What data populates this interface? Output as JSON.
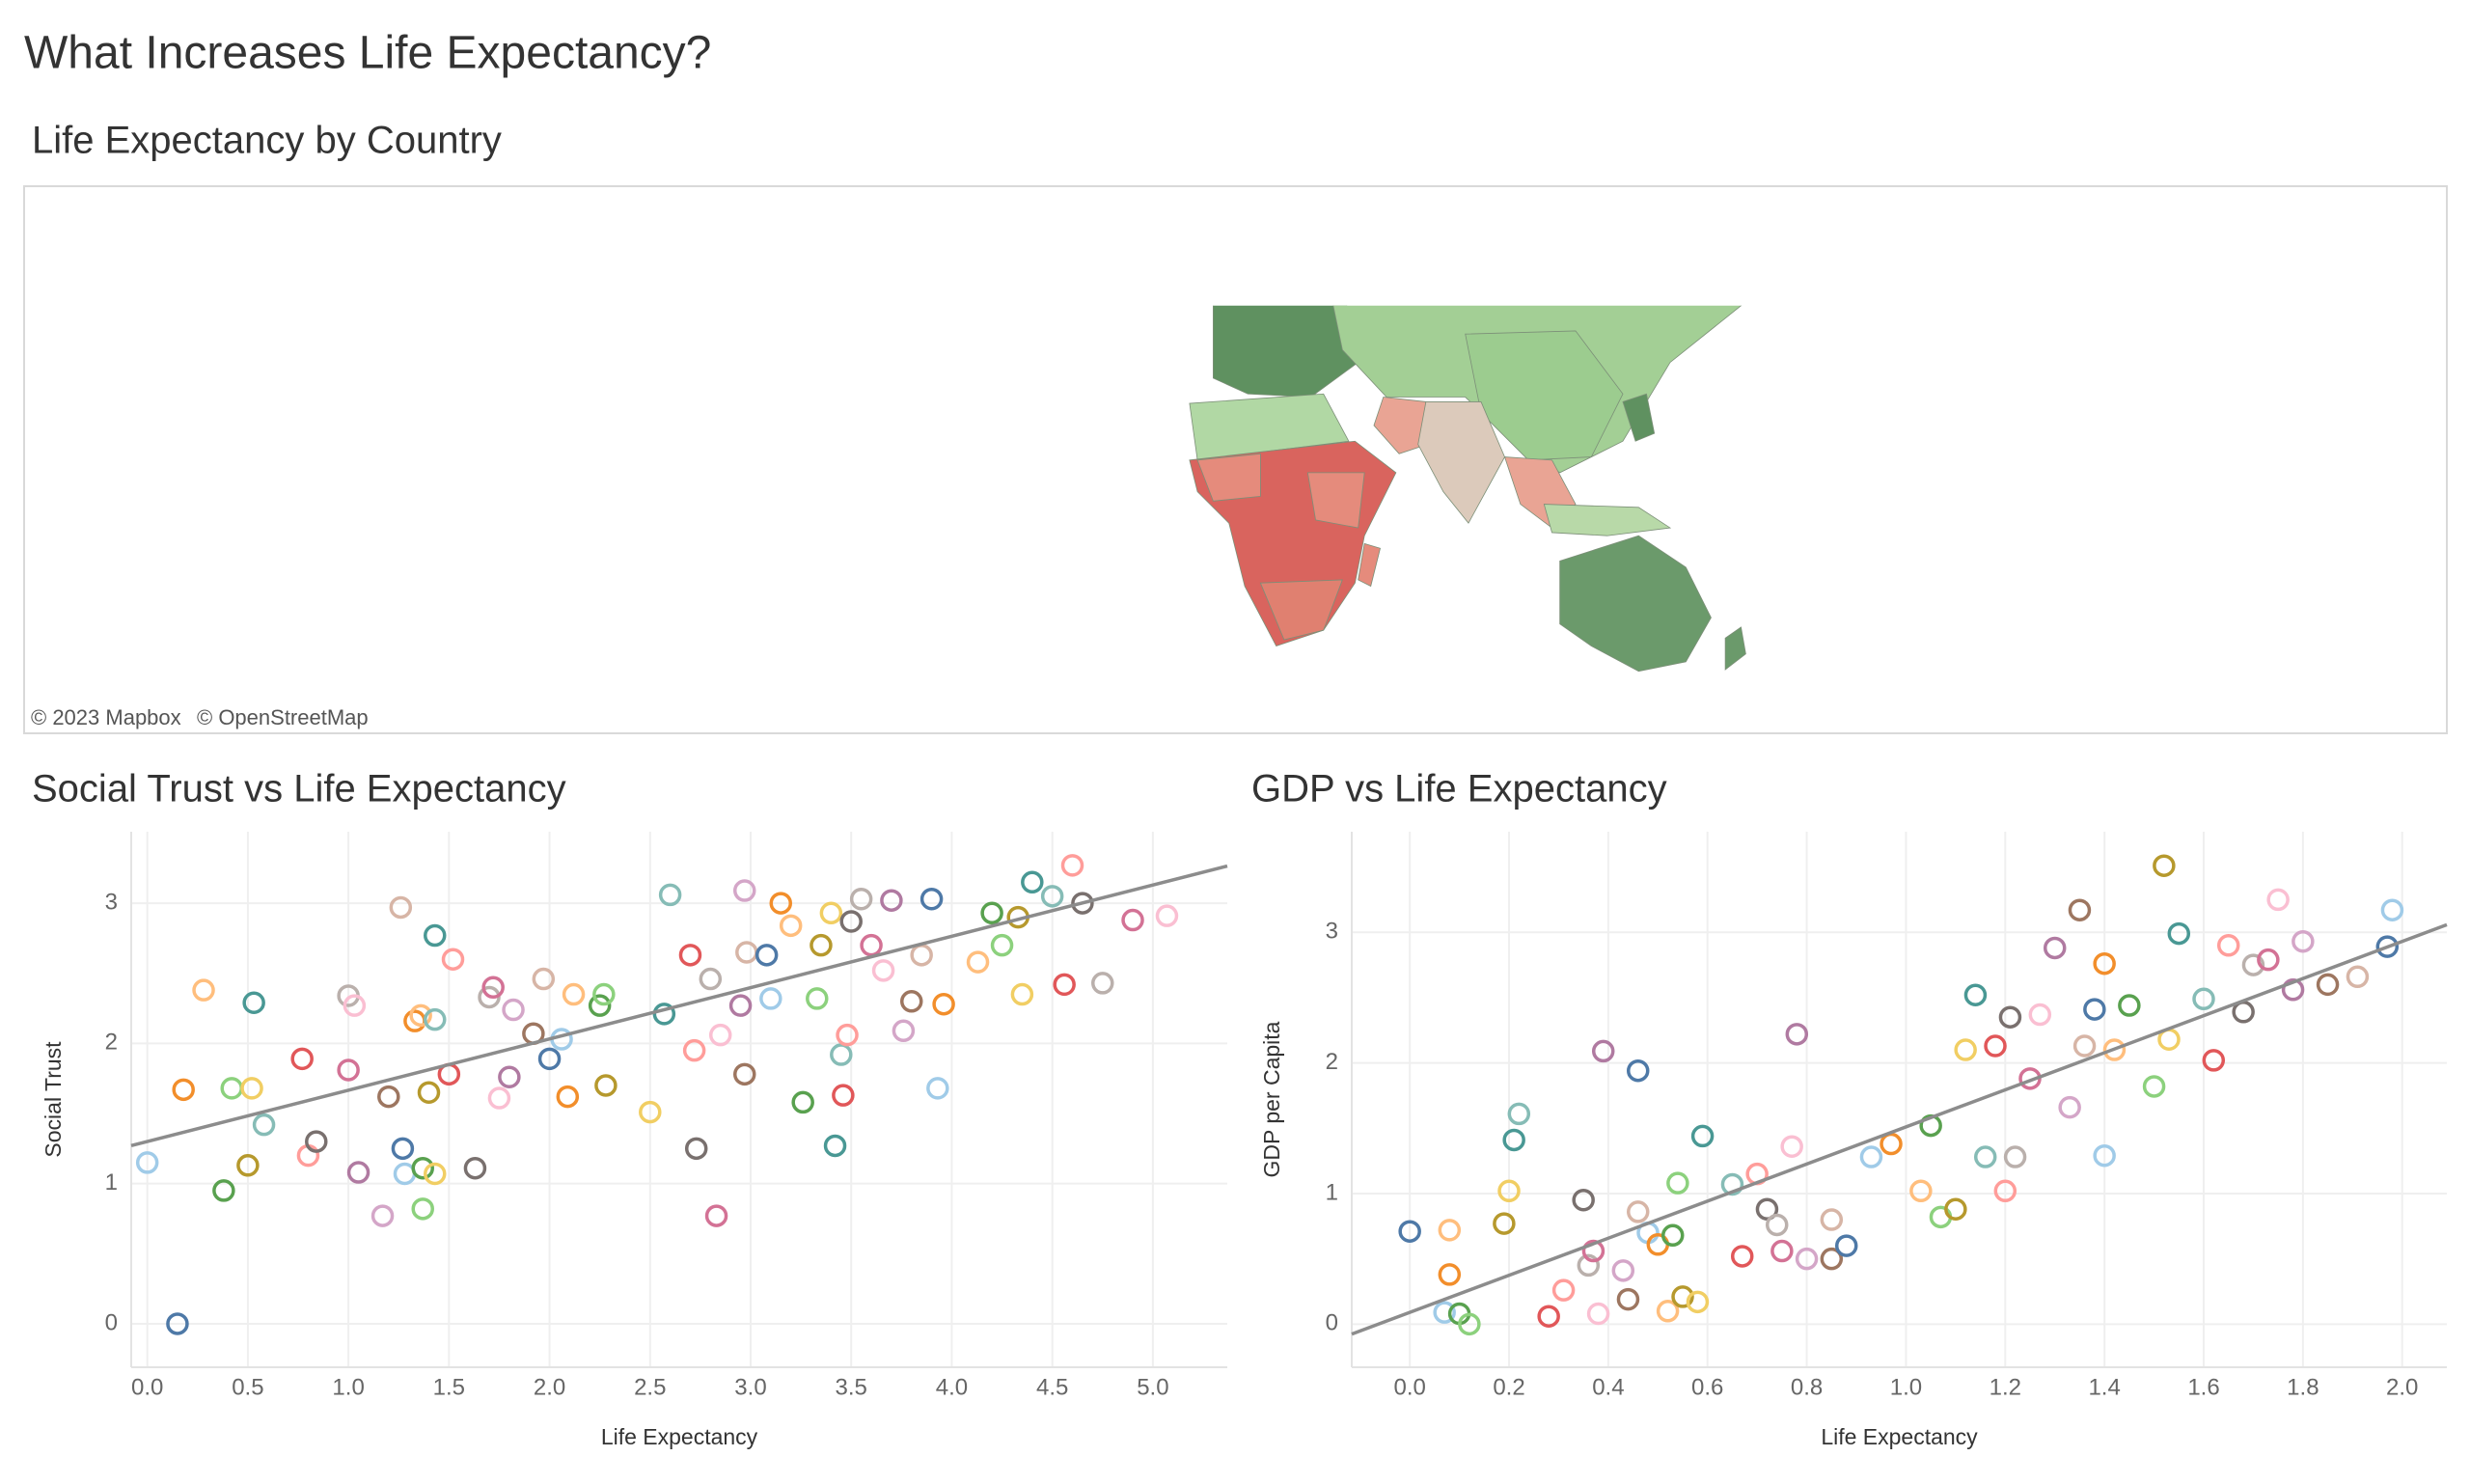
{
  "title": "What Increases Life Expectancy?",
  "chart_data": [
    {
      "type": "map",
      "title": "Life Expectancy by Country",
      "attribution": [
        "© 2023 Mapbox",
        "© OpenStreetMap"
      ]
    },
    {
      "type": "scatter",
      "title": "Social Trust vs Life Expectancy",
      "x_label": "Life Expectancy",
      "y_label": "Social Trust",
      "x": [
        0.15,
        0.0,
        0.18,
        0.28,
        0.38,
        0.42,
        0.5,
        0.52,
        0.53,
        0.58,
        0.77,
        0.8,
        0.84,
        1.0,
        1.0,
        1.03,
        1.05,
        1.17,
        1.2,
        1.26,
        1.27,
        1.28,
        1.33,
        1.36,
        1.37,
        1.37,
        1.4,
        1.43,
        1.43,
        1.43,
        1.5,
        1.52,
        1.63,
        1.7,
        1.72,
        1.75,
        1.8,
        1.82,
        1.92,
        1.97,
        2.0,
        2.06,
        2.09,
        2.12,
        2.25,
        2.27,
        2.28,
        2.5,
        2.57,
        2.6,
        2.7,
        2.72,
        2.73,
        2.8,
        2.83,
        2.85,
        2.95,
        2.97,
        2.97,
        2.98,
        3.08,
        3.1,
        3.15,
        3.2,
        3.26,
        3.33,
        3.35,
        3.4,
        3.42,
        3.45,
        3.46,
        3.48,
        3.5,
        3.55,
        3.6,
        3.66,
        3.7,
        3.76,
        3.8,
        3.85,
        3.9,
        3.93,
        3.96,
        4.13,
        4.2,
        4.25,
        4.33,
        4.35,
        4.4,
        4.5,
        4.56,
        4.6,
        4.65,
        4.75,
        4.9,
        5.07
      ],
      "y": [
        0.0,
        1.15,
        1.67,
        2.38,
        0.95,
        1.68,
        1.13,
        1.68,
        2.29,
        1.42,
        1.89,
        1.2,
        1.3,
        2.34,
        1.81,
        2.27,
        1.08,
        0.77,
        1.62,
        2.97,
        1.25,
        1.07,
        2.16,
        2.2,
        1.11,
        0.82,
        1.65,
        1.07,
        2.77,
        2.17,
        1.78,
        2.6,
        1.11,
        2.33,
        2.4,
        1.61,
        1.76,
        2.24,
        2.07,
        2.46,
        1.89,
        2.03,
        1.62,
        2.35,
        2.27,
        2.35,
        1.7,
        1.51,
        2.21,
        3.06,
        2.63,
        1.95,
        1.25,
        2.46,
        0.77,
        2.06,
        2.27,
        3.09,
        1.78,
        2.65,
        2.63,
        2.32,
        3.0,
        2.84,
        1.58,
        2.32,
        2.7,
        2.93,
        1.27,
        1.92,
        1.63,
        2.06,
        2.87,
        3.03,
        2.7,
        2.52,
        3.02,
        2.09,
        2.3,
        2.63,
        3.03,
        1.68,
        2.28,
        2.58,
        2.93,
        2.7,
        2.9,
        2.35,
        3.15,
        3.05,
        2.42,
        3.27,
        3.0,
        2.43,
        2.88,
        2.91
      ],
      "xlim": [
        -0.08,
        5.37
      ],
      "ylim": [
        -0.31,
        3.51
      ],
      "xticks": [
        {
          "value": 0,
          "label": "0.0"
        },
        0.5,
        {
          "value": 1,
          "label": "1.0"
        },
        1.5,
        {
          "value": 2,
          "label": "2.0"
        },
        2.5,
        {
          "value": 3,
          "label": "3.0"
        },
        3.5,
        {
          "value": 4,
          "label": "4.0"
        },
        4.5,
        {
          "value": 5,
          "label": "5.0"
        }
      ],
      "yticks": [
        0,
        1,
        2,
        3
      ],
      "trendline": {
        "slope": 0.366,
        "intercept": 1.3
      },
      "trend_color": "#8c8c8c",
      "grid": true,
      "palette": [
        "#4e79a7",
        "#a0cbe8",
        "#f28e2b",
        "#ffbe7d",
        "#59a14f",
        "#8cd17d",
        "#b6992d",
        "#f1ce63",
        "#499894",
        "#86bcb6",
        "#e15759",
        "#ff9d9a",
        "#79706e",
        "#bab0ac",
        "#d37295",
        "#fabfd2",
        "#b07aa1",
        "#d4a6c8",
        "#9d7660",
        "#d7b5a6"
      ]
    },
    {
      "type": "scatter",
      "title": "GDP vs Life Expectancy",
      "x_label": "Life Expectancy",
      "y_label": "GDP per Capita",
      "x": [
        0.0,
        0.07,
        0.08,
        0.08,
        0.1,
        0.12,
        0.19,
        0.2,
        0.21,
        0.22,
        0.28,
        0.31,
        0.35,
        0.36,
        0.37,
        0.38,
        0.39,
        0.43,
        0.44,
        0.46,
        0.46,
        0.48,
        0.5,
        0.52,
        0.53,
        0.54,
        0.55,
        0.58,
        0.59,
        0.65,
        0.67,
        0.7,
        0.72,
        0.74,
        0.75,
        0.77,
        0.78,
        0.8,
        0.85,
        0.85,
        0.88,
        0.93,
        0.97,
        1.03,
        1.05,
        1.07,
        1.1,
        1.12,
        1.14,
        1.16,
        1.18,
        1.2,
        1.21,
        1.22,
        1.25,
        1.27,
        1.3,
        1.33,
        1.35,
        1.36,
        1.38,
        1.4,
        1.4,
        1.42,
        1.45,
        1.5,
        1.52,
        1.53,
        1.55,
        1.6,
        1.62,
        1.65,
        1.68,
        1.7,
        1.73,
        1.75,
        1.78,
        1.8,
        1.85,
        1.91,
        1.97,
        1.98
      ],
      "y": [
        0.71,
        0.09,
        0.38,
        0.72,
        0.08,
        0.0,
        0.77,
        1.02,
        1.41,
        1.61,
        0.06,
        0.26,
        0.95,
        0.45,
        0.56,
        0.08,
        2.09,
        0.41,
        0.19,
        0.86,
        1.94,
        0.7,
        0.61,
        0.1,
        0.68,
        1.08,
        0.21,
        0.17,
        1.44,
        1.07,
        0.52,
        1.15,
        0.88,
        0.76,
        0.56,
        1.36,
        2.22,
        0.5,
        0.5,
        0.8,
        0.6,
        1.28,
        1.38,
        1.02,
        1.52,
        0.82,
        0.88,
        2.1,
        2.52,
        1.28,
        2.13,
        1.02,
        2.35,
        1.28,
        1.88,
        2.37,
        2.88,
        1.66,
        3.17,
        2.13,
        2.41,
        1.29,
        2.76,
        2.1,
        2.44,
        1.82,
        3.51,
        2.18,
        2.99,
        2.49,
        2.02,
        2.9,
        2.39,
        2.75,
        2.79,
        3.25,
        2.56,
        2.93,
        2.6,
        2.66,
        2.89,
        3.17
      ],
      "xlim": [
        -0.117,
        2.09
      ],
      "ylim": [
        -0.33,
        3.77
      ],
      "xticks": [
        {
          "value": 0,
          "label": "0.0"
        },
        0.2,
        0.4,
        0.6,
        0.8,
        {
          "value": 1,
          "label": "1.0"
        },
        1.2,
        1.4,
        1.6,
        1.8,
        {
          "value": 2,
          "label": "2.0"
        }
      ],
      "yticks": [
        0,
        1,
        2,
        3
      ],
      "trendline": {
        "slope": 1.42,
        "intercept": 0.09
      },
      "trend_color": "#8c8c8c",
      "grid": true,
      "palette": [
        "#4e79a7",
        "#a0cbe8",
        "#f28e2b",
        "#ffbe7d",
        "#59a14f",
        "#8cd17d",
        "#b6992d",
        "#f1ce63",
        "#499894",
        "#86bcb6",
        "#e15759",
        "#ff9d9a",
        "#79706e",
        "#bab0ac",
        "#d37295",
        "#fabfd2",
        "#b07aa1",
        "#d4a6c8",
        "#9d7660",
        "#d7b5a6"
      ]
    }
  ]
}
